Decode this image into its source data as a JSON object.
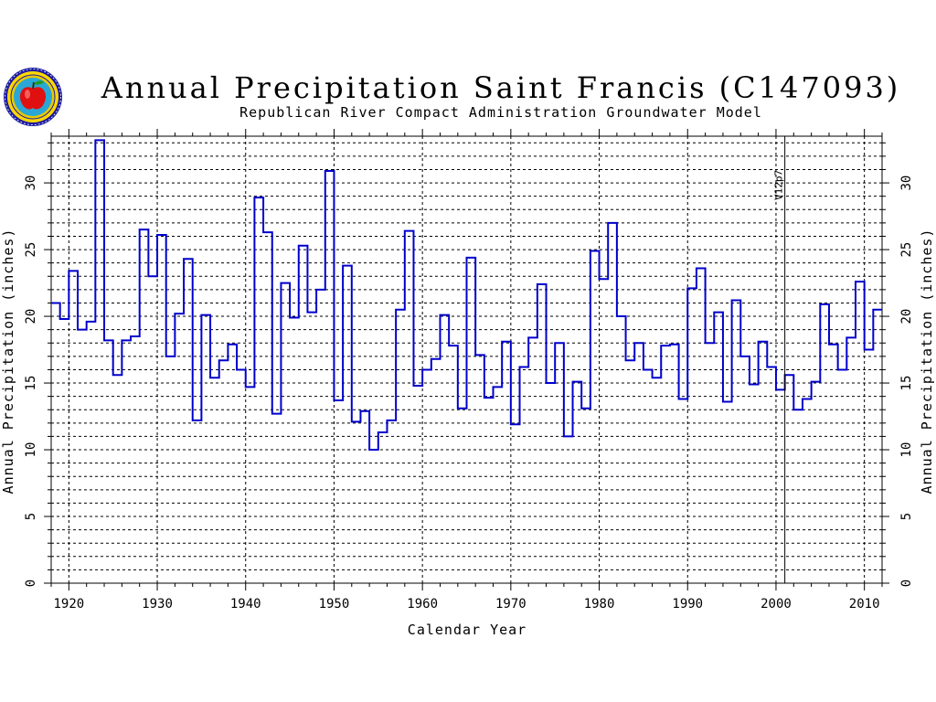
{
  "chart_data": {
    "type": "line",
    "step": true,
    "title": "Annual Precipitation Saint Francis (C147093)",
    "subtitle": "Republican River Compact Administration Groundwater Model",
    "xlabel": "Calendar Year",
    "ylabel": "Annual Precipitation (inches)",
    "ylabel_right": "Annual Precipitation (inches)",
    "xlim": [
      1918,
      2012
    ],
    "ylim": [
      0,
      33.5
    ],
    "x_ticks": [
      "1920",
      "1930",
      "1940",
      "1950",
      "1960",
      "1970",
      "1980",
      "1990",
      "2000",
      "2010"
    ],
    "y_ticks": [
      "0",
      "5",
      "10",
      "15",
      "20",
      "25",
      "30"
    ],
    "grid": "dashed",
    "line_color": "#0000cc",
    "annotations": [
      {
        "x": 2001,
        "label": "V12p7",
        "style": "vertical-line"
      }
    ],
    "x": [
      1918,
      1919,
      1920,
      1921,
      1922,
      1923,
      1924,
      1925,
      1926,
      1927,
      1928,
      1929,
      1930,
      1931,
      1932,
      1933,
      1934,
      1935,
      1936,
      1937,
      1938,
      1939,
      1940,
      1941,
      1942,
      1943,
      1944,
      1945,
      1946,
      1947,
      1948,
      1949,
      1950,
      1951,
      1952,
      1953,
      1954,
      1955,
      1956,
      1957,
      1958,
      1959,
      1960,
      1961,
      1962,
      1963,
      1964,
      1965,
      1966,
      1967,
      1968,
      1969,
      1970,
      1971,
      1972,
      1973,
      1974,
      1975,
      1976,
      1977,
      1978,
      1979,
      1980,
      1981,
      1982,
      1983,
      1984,
      1985,
      1986,
      1987,
      1988,
      1989,
      1990,
      1991,
      1992,
      1993,
      1994,
      1995,
      1996,
      1997,
      1998,
      1999,
      2000,
      2001,
      2002,
      2003,
      2004,
      2005,
      2006,
      2007,
      2008,
      2009,
      2010,
      2011
    ],
    "values": [
      21.0,
      19.8,
      23.4,
      19.0,
      19.6,
      33.2,
      18.2,
      15.6,
      18.2,
      18.5,
      26.5,
      23.0,
      26.1,
      17.0,
      20.2,
      24.3,
      12.2,
      20.1,
      15.4,
      16.7,
      17.9,
      16.0,
      14.7,
      28.9,
      26.3,
      12.7,
      22.5,
      19.9,
      25.3,
      20.3,
      22.0,
      30.9,
      13.7,
      23.8,
      12.1,
      12.9,
      10.0,
      11.3,
      12.2,
      20.5,
      26.4,
      14.8,
      16.0,
      16.8,
      20.1,
      17.8,
      13.1,
      24.4,
      17.1,
      13.9,
      14.7,
      18.1,
      11.9,
      16.2,
      18.4,
      22.4,
      15.0,
      18.0,
      11.0,
      15.1,
      13.1,
      24.9,
      22.8,
      27.0,
      20.0,
      16.7,
      18.0,
      16.0,
      15.4,
      17.8,
      17.9,
      13.8,
      22.1,
      23.6,
      18.0,
      20.3,
      13.6,
      21.2,
      17.0,
      14.9,
      18.1,
      16.2,
      14.5,
      15.6,
      13.0,
      13.8,
      15.1,
      20.9,
      17.9,
      16.0,
      18.4,
      22.6,
      17.5,
      20.5
    ]
  },
  "logo": {
    "name": "organization-seal"
  }
}
